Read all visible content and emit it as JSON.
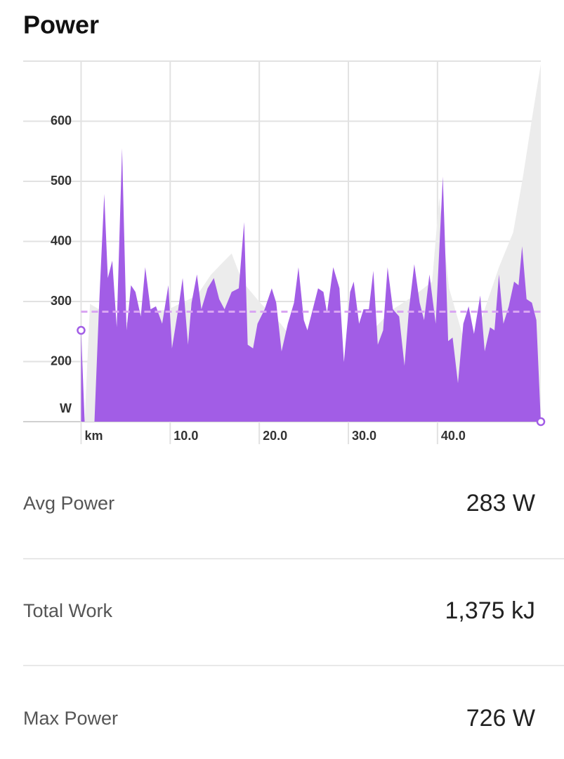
{
  "chart_data": {
    "type": "area",
    "title": "Power",
    "xlim": [
      -6.5,
      51.6
    ],
    "ylim": [
      100,
      700
    ],
    "xticks": [
      {
        "value": 0,
        "label": "km"
      },
      {
        "value": 10,
        "label": "10.0"
      },
      {
        "value": 20,
        "label": "20.0"
      },
      {
        "value": 30,
        "label": "30.0"
      },
      {
        "value": 40,
        "label": "40.0"
      }
    ],
    "yticks": [
      {
        "value": 100,
        "label": "W"
      },
      200,
      300,
      400,
      500,
      600
    ],
    "grid": true,
    "average_line": 283,
    "average_color": "#d9a6f2",
    "series": [
      {
        "color": "#ececec",
        "x": [
          0.4,
          1.0,
          2.0,
          4.3,
          6.7,
          9.8,
          13.0,
          14.6,
          16.1,
          16.9,
          18.1,
          20.1,
          22.4,
          24.8,
          27.2,
          28.7,
          29.7,
          30.3,
          32.7,
          35.0,
          37.4,
          39.4,
          40.2,
          41.3,
          42.9,
          43.7,
          45.3,
          46.9,
          48.5,
          49.6,
          50.7,
          51.6
        ],
        "values": [
          100,
          296,
          287,
          257,
          281,
          287,
          310,
          345,
          368,
          380,
          333,
          298,
          263,
          217,
          182,
          152,
          152,
          193,
          252,
          287,
          310,
          333,
          473,
          322,
          240,
          217,
          287,
          357,
          415,
          508,
          613,
          695
        ]
      },
      {
        "color": "#a25de6",
        "x": [
          0.0,
          0.4,
          1.5,
          2.0,
          2.6,
          3.0,
          3.5,
          4.0,
          4.6,
          5.1,
          5.6,
          6.1,
          6.7,
          7.2,
          7.8,
          8.4,
          9.1,
          9.8,
          10.2,
          10.9,
          11.4,
          12.0,
          12.4,
          13.0,
          13.5,
          14.2,
          14.9,
          15.5,
          16.1,
          16.9,
          17.7,
          18.3,
          18.7,
          19.3,
          19.8,
          20.6,
          21.4,
          21.9,
          22.5,
          23.2,
          23.9,
          24.4,
          25.0,
          25.4,
          26.0,
          26.6,
          27.2,
          27.6,
          28.3,
          29.0,
          29.5,
          30.2,
          30.6,
          31.2,
          31.7,
          32.3,
          32.8,
          33.3,
          33.9,
          34.4,
          35.0,
          35.7,
          36.3,
          36.8,
          37.4,
          38.0,
          38.5,
          39.1,
          39.8,
          40.6,
          41.2,
          41.7,
          42.3,
          42.9,
          43.5,
          44.1,
          44.8,
          45.3,
          45.9,
          46.4,
          46.9,
          47.4,
          48.0,
          48.6,
          49.1,
          49.5,
          50.0,
          50.6,
          51.1,
          51.6
        ],
        "values": [
          252,
          100,
          100,
          287,
          479,
          339,
          368,
          257,
          555,
          252,
          327,
          316,
          275,
          357,
          287,
          292,
          263,
          327,
          222,
          287,
          339,
          228,
          298,
          345,
          287,
          322,
          339,
          304,
          287,
          316,
          322,
          432,
          228,
          222,
          263,
          287,
          322,
          298,
          217,
          263,
          298,
          357,
          269,
          252,
          287,
          322,
          316,
          281,
          357,
          322,
          199,
          316,
          333,
          263,
          287,
          287,
          351,
          228,
          252,
          357,
          287,
          275,
          193,
          287,
          362,
          298,
          269,
          345,
          263,
          508,
          234,
          240,
          164,
          263,
          292,
          246,
          310,
          217,
          257,
          252,
          345,
          263,
          292,
          333,
          327,
          392,
          304,
          298,
          269,
          100
        ]
      }
    ]
  },
  "stats": [
    {
      "label": "Avg Power",
      "value": "283 W"
    },
    {
      "label": "Total Work",
      "value": "1,375 kJ"
    },
    {
      "label": "Max Power",
      "value": "726 W"
    }
  ]
}
